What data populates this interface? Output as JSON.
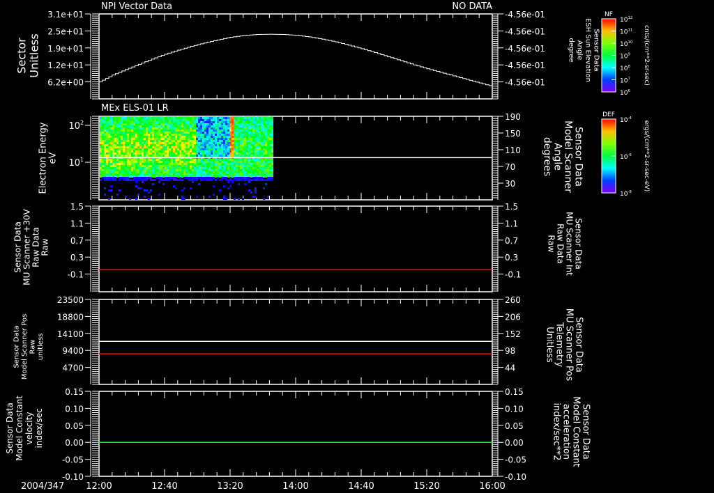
{
  "header": {
    "title": "NPI Vector Data",
    "status": "NO DATA"
  },
  "footer": {
    "date": "2004/347"
  },
  "colors": {
    "red": "#ff0000",
    "green": "#00ff00",
    "white": "#ffffff",
    "background": "#000000"
  },
  "chart_data": [
    {
      "type": "line",
      "title": "NPI Vector Data",
      "status": "NO DATA",
      "x_ticks": [
        "12:00",
        "12:40",
        "13:20",
        "14:00",
        "14:40",
        "15:20",
        "16:00"
      ],
      "x_unit": "minutes since 12:00",
      "left_axis": {
        "label": [
          "Sector",
          "Unitless"
        ],
        "ticks": [
          "3.1e+01",
          "2.5e+01",
          "1.9e+01",
          "1.2e+01",
          "6.2e+00"
        ],
        "tick_values": [
          31,
          24.8,
          18.6,
          12.4,
          6.2
        ],
        "ylim": [
          0,
          31
        ]
      },
      "right_axis": {
        "label": [
          "Sensor Data",
          "ESH Sun Elevation",
          "Angle",
          "degree"
        ],
        "ticks": [
          "-4.56e-01",
          "-4.56e-01",
          "-4.56e-01",
          "-4.56e-01",
          "-4.56e-01"
        ]
      },
      "series": [
        {
          "name": "Sector",
          "color": "#ffffff",
          "x": [
            0,
            8,
            16,
            24,
            32,
            40,
            48,
            56,
            64,
            72,
            80,
            88,
            96,
            104,
            112,
            120,
            128,
            136,
            144,
            152,
            160,
            168,
            176,
            184,
            192,
            200,
            208,
            216,
            224,
            232,
            240
          ],
          "values": [
            6.2,
            8.7,
            10.7,
            12.6,
            14.5,
            16.3,
            17.8,
            19.2,
            20.4,
            21.5,
            22.5,
            23.1,
            23.5,
            23.6,
            23.5,
            23.2,
            22.6,
            21.8,
            20.8,
            19.6,
            18.3,
            16.9,
            15.4,
            13.9,
            12.4,
            11.0,
            9.7,
            8.4,
            7.1,
            5.8,
            4.5
          ]
        }
      ],
      "colorbar": {
        "title": "NF",
        "labels": [
          {
            "base": "10",
            "exp": "12"
          },
          {
            "base": "10",
            "exp": "11"
          },
          {
            "base": "10",
            "exp": "10"
          },
          {
            "base": "10",
            "exp": "9"
          },
          {
            "base": "10",
            "exp": "8"
          },
          {
            "base": "10",
            "exp": "7"
          },
          {
            "base": "10",
            "exp": "6"
          }
        ],
        "unit": "cnts/(cm**2-sr-sec)"
      }
    },
    {
      "type": "heatmap",
      "title": "MEx ELS-01 LR",
      "left_axis": {
        "label": [
          "Electron Energy",
          "eV"
        ],
        "scale": "log",
        "ticks": [
          {
            "base": "10",
            "exp": "2"
          },
          {
            "base": "10",
            "exp": "1"
          }
        ],
        "tick_values": [
          100,
          10
        ],
        "ylim": [
          0.96,
          176
        ]
      },
      "right_axis": {
        "label": [
          "Sensor Data",
          "Model Scanner",
          "Angle",
          "degrees"
        ],
        "ticks": [
          "190",
          "150",
          "110",
          "70",
          "30"
        ],
        "tick_values": [
          190,
          150,
          110,
          70,
          30
        ],
        "ylim": [
          -2,
          190
        ]
      },
      "data_time_range_min": [
        0,
        106
      ],
      "energy_range_ev": [
        4.5,
        176
      ],
      "series": [
        {
          "name": "Model Scanner Angle",
          "color": "#ffffff",
          "values": [
            95
          ]
        }
      ],
      "colorbar": {
        "title": "DEF",
        "labels": [
          {
            "base": "10",
            "exp": "-4"
          },
          {
            "base": "10",
            "exp": "-6"
          },
          {
            "base": "10",
            "exp": "-8"
          }
        ],
        "unit": "ergs/(cm**2-sr-sec-eV)"
      }
    },
    {
      "type": "line",
      "left_axis": {
        "label": [
          "Sensor Data",
          "MU Scanner +30V",
          "Raw Data",
          "Raw"
        ],
        "ticks": [
          "1.5",
          "1.1",
          "0.7",
          "0.3",
          "-0.1"
        ],
        "tick_values": [
          1.5,
          1.1,
          0.7,
          0.3,
          -0.1
        ],
        "ylim": [
          -0.52,
          1.5
        ]
      },
      "right_axis": {
        "label": [
          "Sensor Data",
          "MU Scanner Int",
          "Raw Data",
          "Raw"
        ],
        "ticks": [
          "1.5",
          "1.1",
          "0.7",
          "0.3",
          "-0.1"
        ],
        "color": "#ff0000"
      },
      "series": [
        {
          "name": "MU Scanner Int",
          "color": "#ff0000",
          "values": [
            0.0
          ]
        }
      ]
    },
    {
      "type": "line",
      "left_axis": {
        "label": [
          "Sensor Data",
          "Model Scanner Pos",
          "Raw",
          "unitless"
        ],
        "ticks": [
          "23500",
          "18800",
          "14100",
          "9400",
          "4700"
        ],
        "tick_values": [
          23500,
          18800,
          14100,
          9400,
          4700
        ],
        "ylim": [
          0,
          23500
        ]
      },
      "right_axis": {
        "label": [
          "Sensor Data",
          "MU Scanner Pos",
          "Telemetry",
          "Unitless"
        ],
        "ticks": [
          "260",
          "206",
          "152",
          "98",
          "44"
        ],
        "tick_values": [
          260,
          206,
          152,
          98,
          44
        ],
        "ylim": [
          -10,
          260
        ],
        "color": "#ff0000"
      },
      "series": [
        {
          "name": "Model Scanner Pos",
          "axis": "left",
          "color": "#ffffff",
          "values": [
            11900
          ]
        },
        {
          "name": "MU Scanner Pos",
          "axis": "right",
          "color": "#ff0000",
          "values": [
            87
          ]
        }
      ]
    },
    {
      "type": "line",
      "left_axis": {
        "label": [
          "Sensor Data",
          "Model Constant",
          "velocity",
          "index/sec"
        ],
        "ticks": [
          "0.15",
          "0.10",
          "0.05",
          "0.00",
          "-0.05",
          "-0.10"
        ],
        "tick_values": [
          0.15,
          0.1,
          0.05,
          0.0,
          -0.05,
          -0.1
        ],
        "ylim": [
          -0.1,
          0.15
        ]
      },
      "right_axis": {
        "label": [
          "Sensor Data",
          "Model Constant",
          "acceleration",
          "index/sec**2"
        ],
        "ticks": [
          "0.15",
          "0.10",
          "0.05",
          "0.00",
          "-0.05",
          "-0.10"
        ],
        "color": "#00ff00"
      },
      "series": [
        {
          "name": "Model Constant acceleration",
          "color": "#00ff00",
          "values": [
            0.0
          ]
        }
      ]
    }
  ]
}
